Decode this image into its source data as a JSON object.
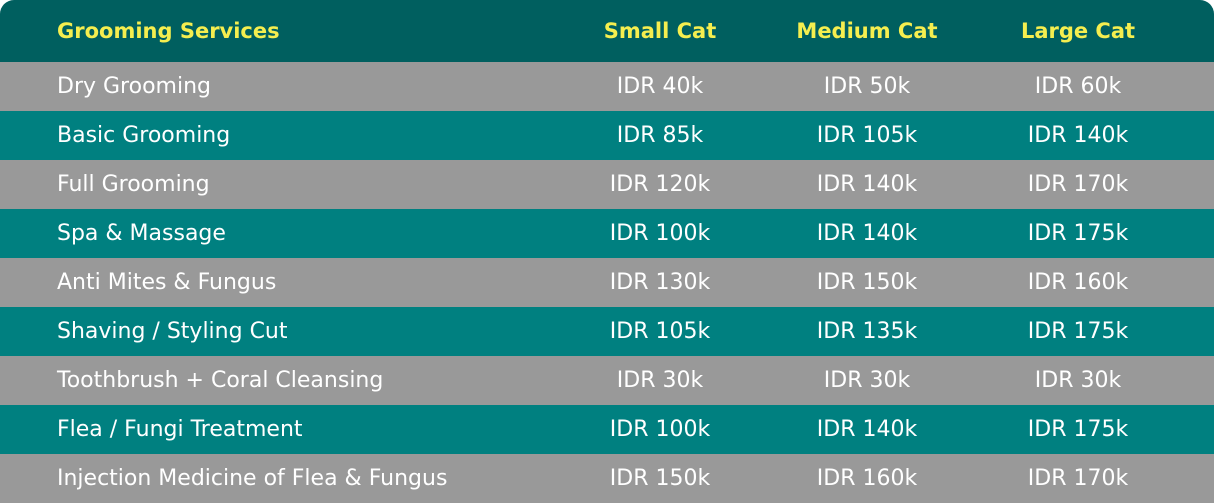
{
  "table": {
    "headers": {
      "service": "Grooming Services",
      "small": "Small Cat",
      "medium": "Medium Cat",
      "large": "Large Cat"
    },
    "rows": [
      {
        "service": "Dry Grooming",
        "small": "IDR 40k",
        "medium": "IDR 50k",
        "large": "IDR 60k"
      },
      {
        "service": "Basic Grooming",
        "small": "IDR 85k",
        "medium": "IDR 105k",
        "large": "IDR 140k"
      },
      {
        "service": "Full Grooming",
        "small": "IDR 120k",
        "medium": "IDR 140k",
        "large": "IDR 170k"
      },
      {
        "service": "Spa & Massage",
        "small": "IDR 100k",
        "medium": "IDR 140k",
        "large": "IDR 175k"
      },
      {
        "service": "Anti Mites & Fungus",
        "small": "IDR 130k",
        "medium": "IDR 150k",
        "large": "IDR 160k"
      },
      {
        "service": "Shaving / Styling Cut",
        "small": "IDR 105k",
        "medium": "IDR 135k",
        "large": "IDR 175k"
      },
      {
        "service": "Toothbrush + Coral Cleansing",
        "small": "IDR 30k",
        "medium": "IDR 30k",
        "large": "IDR 30k"
      },
      {
        "service": "Flea / Fungi Treatment",
        "small": "IDR 100k",
        "medium": "IDR 140k",
        "large": "IDR 175k"
      },
      {
        "service": "Injection Medicine of Flea & Fungus",
        "small": "IDR 150k",
        "medium": "IDR 160k",
        "large": "IDR 170k"
      }
    ]
  },
  "colors": {
    "header_bg": "#005f5f",
    "header_text": "#f5ee4f",
    "row_gray": "#999999",
    "row_teal": "#008080",
    "row_text": "#ffffff"
  }
}
